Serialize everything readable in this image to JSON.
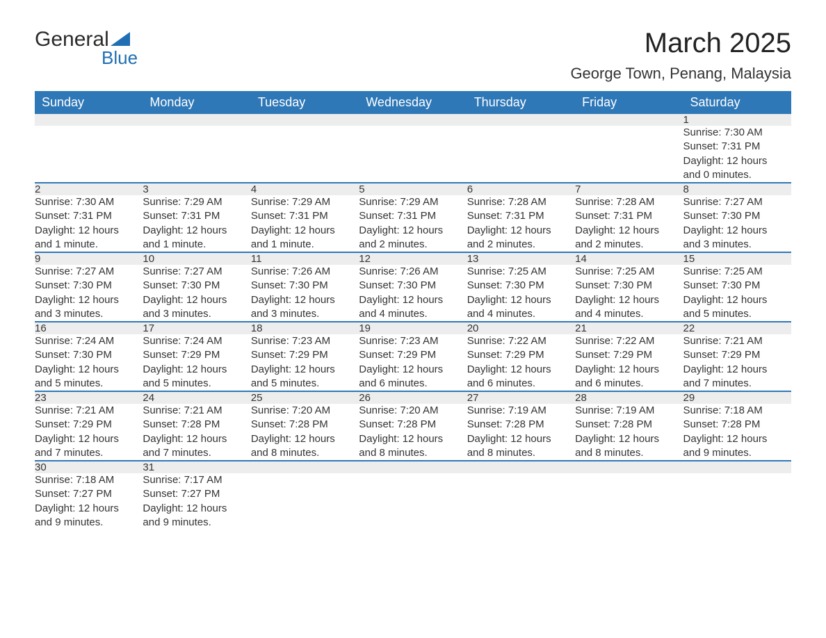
{
  "logo": {
    "top": "General",
    "bottom": "Blue",
    "icon_color": "#1f6fb2"
  },
  "title": "March 2025",
  "location": "George Town, Penang, Malaysia",
  "header_bg": "#2f78b7",
  "header_fg": "#ffffff",
  "daynum_bg": "#ededed",
  "divider_color": "#2f78b7",
  "weekdays": [
    "Sunday",
    "Monday",
    "Tuesday",
    "Wednesday",
    "Thursday",
    "Friday",
    "Saturday"
  ],
  "weeks": [
    [
      null,
      null,
      null,
      null,
      null,
      null,
      {
        "d": "1",
        "sr": "Sunrise: 7:30 AM",
        "ss": "Sunset: 7:31 PM",
        "dl1": "Daylight: 12 hours",
        "dl2": "and 0 minutes."
      }
    ],
    [
      {
        "d": "2",
        "sr": "Sunrise: 7:30 AM",
        "ss": "Sunset: 7:31 PM",
        "dl1": "Daylight: 12 hours",
        "dl2": "and 1 minute."
      },
      {
        "d": "3",
        "sr": "Sunrise: 7:29 AM",
        "ss": "Sunset: 7:31 PM",
        "dl1": "Daylight: 12 hours",
        "dl2": "and 1 minute."
      },
      {
        "d": "4",
        "sr": "Sunrise: 7:29 AM",
        "ss": "Sunset: 7:31 PM",
        "dl1": "Daylight: 12 hours",
        "dl2": "and 1 minute."
      },
      {
        "d": "5",
        "sr": "Sunrise: 7:29 AM",
        "ss": "Sunset: 7:31 PM",
        "dl1": "Daylight: 12 hours",
        "dl2": "and 2 minutes."
      },
      {
        "d": "6",
        "sr": "Sunrise: 7:28 AM",
        "ss": "Sunset: 7:31 PM",
        "dl1": "Daylight: 12 hours",
        "dl2": "and 2 minutes."
      },
      {
        "d": "7",
        "sr": "Sunrise: 7:28 AM",
        "ss": "Sunset: 7:31 PM",
        "dl1": "Daylight: 12 hours",
        "dl2": "and 2 minutes."
      },
      {
        "d": "8",
        "sr": "Sunrise: 7:27 AM",
        "ss": "Sunset: 7:30 PM",
        "dl1": "Daylight: 12 hours",
        "dl2": "and 3 minutes."
      }
    ],
    [
      {
        "d": "9",
        "sr": "Sunrise: 7:27 AM",
        "ss": "Sunset: 7:30 PM",
        "dl1": "Daylight: 12 hours",
        "dl2": "and 3 minutes."
      },
      {
        "d": "10",
        "sr": "Sunrise: 7:27 AM",
        "ss": "Sunset: 7:30 PM",
        "dl1": "Daylight: 12 hours",
        "dl2": "and 3 minutes."
      },
      {
        "d": "11",
        "sr": "Sunrise: 7:26 AM",
        "ss": "Sunset: 7:30 PM",
        "dl1": "Daylight: 12 hours",
        "dl2": "and 3 minutes."
      },
      {
        "d": "12",
        "sr": "Sunrise: 7:26 AM",
        "ss": "Sunset: 7:30 PM",
        "dl1": "Daylight: 12 hours",
        "dl2": "and 4 minutes."
      },
      {
        "d": "13",
        "sr": "Sunrise: 7:25 AM",
        "ss": "Sunset: 7:30 PM",
        "dl1": "Daylight: 12 hours",
        "dl2": "and 4 minutes."
      },
      {
        "d": "14",
        "sr": "Sunrise: 7:25 AM",
        "ss": "Sunset: 7:30 PM",
        "dl1": "Daylight: 12 hours",
        "dl2": "and 4 minutes."
      },
      {
        "d": "15",
        "sr": "Sunrise: 7:25 AM",
        "ss": "Sunset: 7:30 PM",
        "dl1": "Daylight: 12 hours",
        "dl2": "and 5 minutes."
      }
    ],
    [
      {
        "d": "16",
        "sr": "Sunrise: 7:24 AM",
        "ss": "Sunset: 7:30 PM",
        "dl1": "Daylight: 12 hours",
        "dl2": "and 5 minutes."
      },
      {
        "d": "17",
        "sr": "Sunrise: 7:24 AM",
        "ss": "Sunset: 7:29 PM",
        "dl1": "Daylight: 12 hours",
        "dl2": "and 5 minutes."
      },
      {
        "d": "18",
        "sr": "Sunrise: 7:23 AM",
        "ss": "Sunset: 7:29 PM",
        "dl1": "Daylight: 12 hours",
        "dl2": "and 5 minutes."
      },
      {
        "d": "19",
        "sr": "Sunrise: 7:23 AM",
        "ss": "Sunset: 7:29 PM",
        "dl1": "Daylight: 12 hours",
        "dl2": "and 6 minutes."
      },
      {
        "d": "20",
        "sr": "Sunrise: 7:22 AM",
        "ss": "Sunset: 7:29 PM",
        "dl1": "Daylight: 12 hours",
        "dl2": "and 6 minutes."
      },
      {
        "d": "21",
        "sr": "Sunrise: 7:22 AM",
        "ss": "Sunset: 7:29 PM",
        "dl1": "Daylight: 12 hours",
        "dl2": "and 6 minutes."
      },
      {
        "d": "22",
        "sr": "Sunrise: 7:21 AM",
        "ss": "Sunset: 7:29 PM",
        "dl1": "Daylight: 12 hours",
        "dl2": "and 7 minutes."
      }
    ],
    [
      {
        "d": "23",
        "sr": "Sunrise: 7:21 AM",
        "ss": "Sunset: 7:29 PM",
        "dl1": "Daylight: 12 hours",
        "dl2": "and 7 minutes."
      },
      {
        "d": "24",
        "sr": "Sunrise: 7:21 AM",
        "ss": "Sunset: 7:28 PM",
        "dl1": "Daylight: 12 hours",
        "dl2": "and 7 minutes."
      },
      {
        "d": "25",
        "sr": "Sunrise: 7:20 AM",
        "ss": "Sunset: 7:28 PM",
        "dl1": "Daylight: 12 hours",
        "dl2": "and 8 minutes."
      },
      {
        "d": "26",
        "sr": "Sunrise: 7:20 AM",
        "ss": "Sunset: 7:28 PM",
        "dl1": "Daylight: 12 hours",
        "dl2": "and 8 minutes."
      },
      {
        "d": "27",
        "sr": "Sunrise: 7:19 AM",
        "ss": "Sunset: 7:28 PM",
        "dl1": "Daylight: 12 hours",
        "dl2": "and 8 minutes."
      },
      {
        "d": "28",
        "sr": "Sunrise: 7:19 AM",
        "ss": "Sunset: 7:28 PM",
        "dl1": "Daylight: 12 hours",
        "dl2": "and 8 minutes."
      },
      {
        "d": "29",
        "sr": "Sunrise: 7:18 AM",
        "ss": "Sunset: 7:28 PM",
        "dl1": "Daylight: 12 hours",
        "dl2": "and 9 minutes."
      }
    ],
    [
      {
        "d": "30",
        "sr": "Sunrise: 7:18 AM",
        "ss": "Sunset: 7:27 PM",
        "dl1": "Daylight: 12 hours",
        "dl2": "and 9 minutes."
      },
      {
        "d": "31",
        "sr": "Sunrise: 7:17 AM",
        "ss": "Sunset: 7:27 PM",
        "dl1": "Daylight: 12 hours",
        "dl2": "and 9 minutes."
      },
      null,
      null,
      null,
      null,
      null
    ]
  ]
}
